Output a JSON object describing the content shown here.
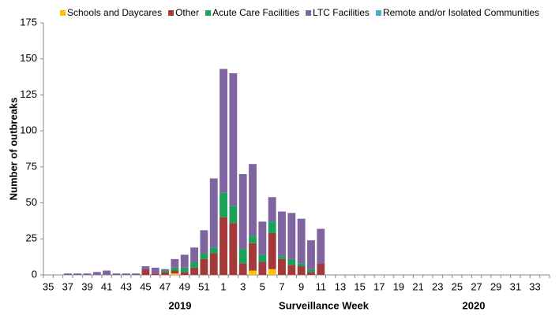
{
  "chart_data": {
    "type": "stacked_bar",
    "y_label": "Number of outbreaks",
    "x_label": "Surveillance Week",
    "annotations": [
      "2019",
      "2020"
    ],
    "categories": [
      "35",
      null,
      "37",
      null,
      "39",
      null,
      "41",
      null,
      "43",
      null,
      "45",
      null,
      "47",
      null,
      "49",
      null,
      "51",
      null,
      "1",
      null,
      "3",
      null,
      "5",
      null,
      "7",
      null,
      "9",
      null,
      "11",
      null,
      "13",
      null,
      "15",
      null,
      "17",
      null,
      "19",
      null,
      "21",
      null,
      "23",
      null,
      "25",
      null,
      "27",
      null,
      "29",
      null,
      "31",
      null,
      "33",
      null
    ],
    "series": [
      {
        "name": "Schools and Daycares",
        "color": "#ffc000",
        "values": [
          0,
          0,
          0,
          0,
          0,
          0,
          0,
          0,
          0,
          0,
          0,
          0,
          0,
          1,
          0,
          0,
          0,
          0,
          0,
          0,
          0,
          3,
          0,
          4,
          0,
          0,
          0,
          0,
          0,
          0,
          0,
          0,
          0,
          0,
          0,
          0,
          0,
          0,
          0,
          0,
          0,
          0,
          0,
          0,
          0,
          0,
          0,
          0,
          0,
          0,
          0,
          0
        ]
      },
      {
        "name": "Other",
        "color": "#a5393a",
        "values": [
          0,
          0,
          0,
          0,
          0,
          0,
          0,
          0,
          0,
          0,
          4,
          1,
          2,
          2,
          2,
          5,
          11,
          15,
          40,
          36,
          8,
          19,
          9,
          25,
          11,
          7,
          6,
          2,
          8,
          0,
          0,
          0,
          0,
          0,
          0,
          0,
          0,
          0,
          0,
          0,
          0,
          0,
          0,
          0,
          0,
          0,
          0,
          0,
          0,
          0,
          0,
          0
        ]
      },
      {
        "name": "Acute Care Facilities",
        "color": "#1aa25a",
        "values": [
          0,
          0,
          0,
          0,
          0,
          0,
          0,
          0,
          0,
          0,
          0,
          0,
          1,
          2,
          3,
          4,
          4,
          4,
          17,
          12,
          10,
          5,
          5,
          8,
          2,
          4,
          2,
          2,
          0,
          0,
          0,
          0,
          0,
          0,
          0,
          0,
          0,
          0,
          0,
          0,
          0,
          0,
          0,
          0,
          0,
          0,
          0,
          0,
          0,
          0,
          0,
          0
        ]
      },
      {
        "name": "LTC Facilities",
        "color": "#8064a2",
        "values": [
          0,
          0,
          1,
          1,
          1,
          2,
          3,
          1,
          1,
          1,
          2,
          4,
          1,
          6,
          9,
          10,
          16,
          48,
          86,
          92,
          52,
          50,
          23,
          17,
          31,
          32,
          31,
          20,
          24,
          0,
          0,
          0,
          0,
          0,
          0,
          0,
          0,
          0,
          0,
          0,
          0,
          0,
          0,
          0,
          0,
          0,
          0,
          0,
          0,
          0,
          0,
          0
        ]
      },
      {
        "name": "Remote and/or Isolated Communities",
        "color": "#4bacc6",
        "values": [
          0,
          0,
          0,
          0,
          0,
          0,
          0,
          0,
          0,
          0,
          0,
          0,
          0,
          0,
          0,
          0,
          0,
          0,
          0,
          0,
          0,
          0,
          0,
          0,
          0,
          0,
          0,
          0,
          0,
          0,
          0,
          0,
          0,
          0,
          0,
          0,
          0,
          0,
          0,
          0,
          0,
          0,
          0,
          0,
          0,
          0,
          0,
          0,
          0,
          0,
          0,
          0
        ]
      }
    ],
    "ylim": [
      0,
      175
    ],
    "yticks": [
      0,
      25,
      50,
      75,
      100,
      125,
      150,
      175
    ],
    "grid": false
  }
}
